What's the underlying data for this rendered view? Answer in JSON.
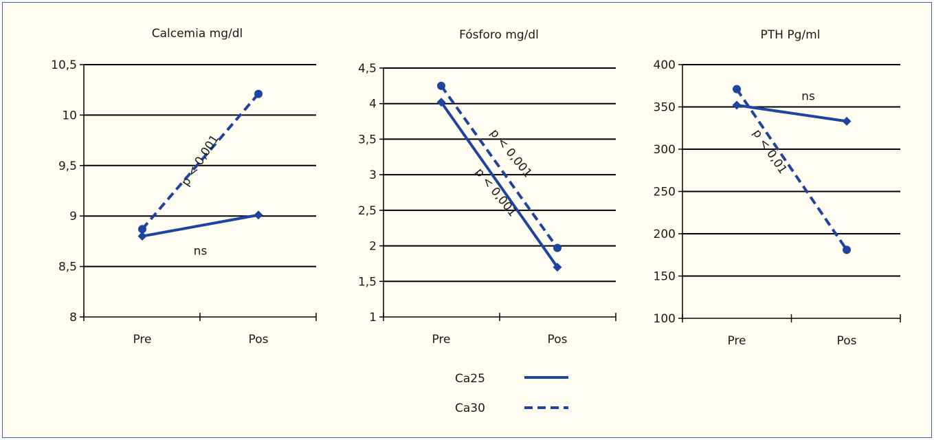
{
  "colors": {
    "series": "#1f43a0",
    "grid": "#000000",
    "background": "#fffdf2",
    "border": "#3b62a8"
  },
  "legend": {
    "items": [
      {
        "label": "Ca25",
        "style": "solid"
      },
      {
        "label": "Ca30",
        "style": "dashed"
      }
    ]
  },
  "chart_data": [
    {
      "type": "line",
      "title": "Calcemia mg/dl",
      "categories": [
        "Pre",
        "Pos"
      ],
      "y_tick_labels": [
        "8",
        "8,5",
        "9",
        "9,5",
        "10",
        "10,5"
      ],
      "ylim": [
        8,
        10.5
      ],
      "grid": true,
      "series": [
        {
          "name": "Ca25",
          "values": [
            8.8,
            9.01
          ],
          "marker": "diamond",
          "style": "solid"
        },
        {
          "name": "Ca30",
          "values": [
            8.87,
            10.21
          ],
          "marker": "circle",
          "style": "dashed"
        }
      ],
      "annotations": [
        {
          "text": "p < 0,001",
          "x": 0.5,
          "y": 9.55,
          "angle": -57
        },
        {
          "text": "ns",
          "x": 0.5,
          "y": 8.65,
          "angle": 0
        }
      ]
    },
    {
      "type": "line",
      "title": "Fósforo mg/dl",
      "categories": [
        "Pre",
        "Pos"
      ],
      "y_tick_labels": [
        "1",
        "1,5",
        "2",
        "2,5",
        "3",
        "3,5",
        "4",
        "4,5"
      ],
      "ylim": [
        1,
        4.5
      ],
      "grid": true,
      "series": [
        {
          "name": "Ca25",
          "values": [
            4.02,
            1.7
          ],
          "marker": "diamond",
          "style": "solid"
        },
        {
          "name": "Ca30",
          "values": [
            4.25,
            1.97
          ],
          "marker": "circle",
          "style": "dashed"
        }
      ],
      "annotations": [
        {
          "text": "p < 0,001",
          "x": 0.6,
          "y": 3.3,
          "angle": 51
        },
        {
          "text": "p < 0,001",
          "x": 0.47,
          "y": 2.75,
          "angle": 51
        }
      ]
    },
    {
      "type": "line",
      "title": "PTH Pg/ml",
      "categories": [
        "Pre",
        "Pos"
      ],
      "y_tick_labels": [
        "100",
        "150",
        "200",
        "250",
        "300",
        "350",
        "400"
      ],
      "ylim": [
        100,
        400
      ],
      "grid": true,
      "series": [
        {
          "name": "Ca25",
          "values": [
            352,
            333
          ],
          "marker": "diamond",
          "style": "solid"
        },
        {
          "name": "Ca30",
          "values": [
            371,
            181
          ],
          "marker": "circle",
          "style": "dashed"
        }
      ],
      "annotations": [
        {
          "text": "ns",
          "x": 0.65,
          "y": 362,
          "angle": 0
        },
        {
          "text": "p < 0,01",
          "x": 0.3,
          "y": 297,
          "angle": 56
        }
      ]
    }
  ]
}
